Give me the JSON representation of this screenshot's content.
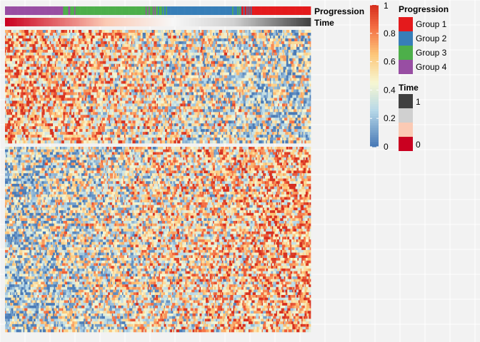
{
  "chart_data": {
    "type": "heatmap",
    "title": "",
    "row_slices": [
      {
        "name": "",
        "rows": 40
      },
      {
        "name": "",
        "rows": 70
      }
    ],
    "n_columns": 300,
    "value_range": [
      0,
      1
    ],
    "color_scale": {
      "stops": [
        {
          "value": 0.0,
          "color": "#4a7bb7"
        },
        {
          "value": 0.25,
          "color": "#b7d8e8"
        },
        {
          "value": 0.45,
          "color": "#f7f7d2"
        },
        {
          "value": 0.65,
          "color": "#fdc87a"
        },
        {
          "value": 0.85,
          "color": "#f46d43"
        },
        {
          "value": 1.0,
          "color": "#d7301f"
        }
      ],
      "ticks": [
        {
          "value": 0,
          "label": "0"
        },
        {
          "value": 0.2,
          "label": "0.2"
        },
        {
          "value": 0.4,
          "label": "0.4"
        },
        {
          "value": 0.6,
          "label": "0.6"
        },
        {
          "value": 0.8,
          "label": "0.8"
        },
        {
          "value": 1,
          "label": "1"
        }
      ]
    },
    "annotations": [
      {
        "name": "Progression",
        "type": "categorical",
        "column_segments": [
          {
            "group": "Group 4",
            "from": 0,
            "to": 0.19
          },
          {
            "group": "Group 3",
            "from": 0.19,
            "to": 0.5
          },
          {
            "group": "Group 2",
            "from": 0.5,
            "to": 0.77
          },
          {
            "group": "Group 1",
            "from": 0.77,
            "to": 1.0
          }
        ]
      },
      {
        "name": "Time",
        "type": "continuous",
        "range": [
          0,
          1
        ],
        "direction": "decreasing"
      }
    ],
    "legends": {
      "progression": {
        "title": "Progression",
        "items": [
          {
            "label": "Group 1",
            "color": "#e41a1c"
          },
          {
            "label": "Group 2",
            "color": "#377eb8"
          },
          {
            "label": "Group 3",
            "color": "#4daf4a"
          },
          {
            "label": "Group 4",
            "color": "#984ea3"
          }
        ]
      },
      "time": {
        "title": "Time",
        "top_label": "1",
        "bottom_label": "0",
        "swatches": [
          "#404040",
          "#d0d0d0",
          "#fbcab4",
          "#ca0020"
        ]
      }
    },
    "grid": true,
    "legend_position": "right"
  }
}
